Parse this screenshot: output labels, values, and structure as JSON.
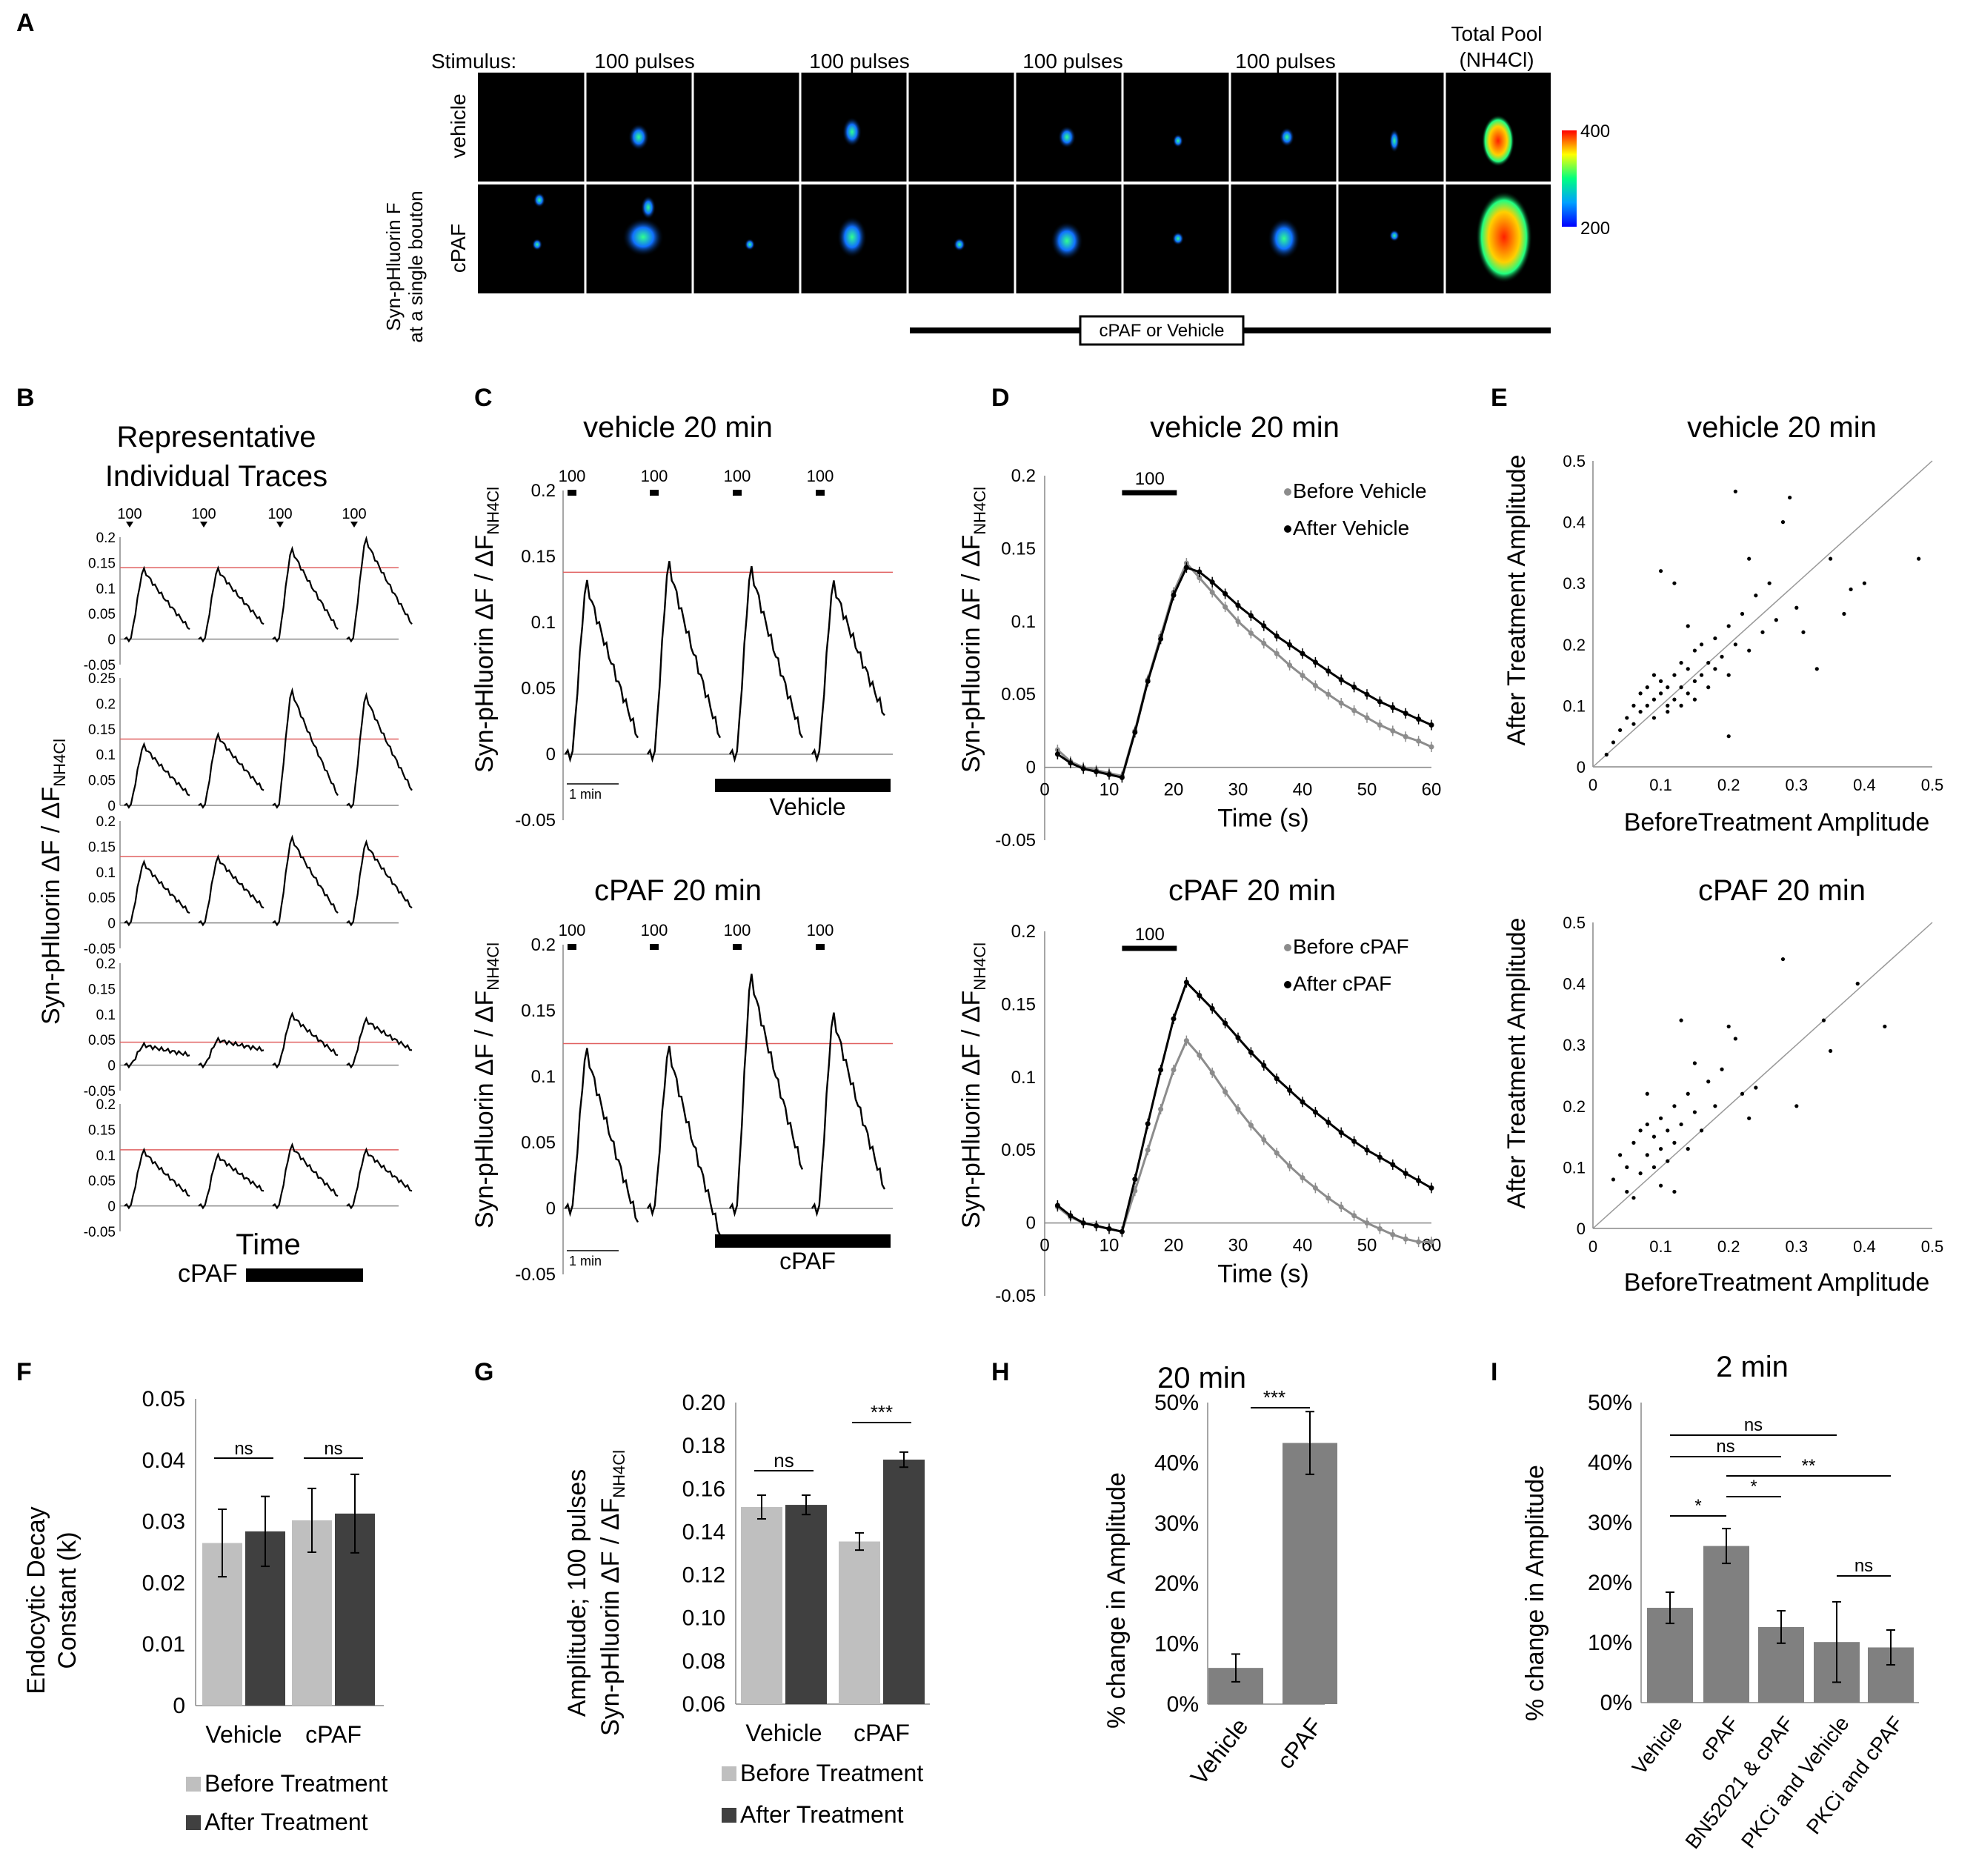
{
  "panel_labels": [
    "A",
    "B",
    "C",
    "D",
    "E",
    "F",
    "G",
    "H",
    "I"
  ],
  "panel_a": {
    "stimulus_label": "Stimulus:",
    "pulse_labels": [
      "100 pulses",
      "100 pulses",
      "100 pulses",
      "100 pulses"
    ],
    "total_pool_line1": "Total Pool",
    "total_pool_line2": "(NH4Cl)",
    "row_labels": [
      "vehicle",
      "cPAF"
    ],
    "side_title_line1": "Syn-pHluorin F",
    "side_title_line2": "at a single bouton",
    "colorbar_max": "400",
    "colorbar_min": "200",
    "treatment_box": "cPAF or Vehicle",
    "colors": {
      "cb_top": "#ff0000",
      "cb_mid": "#00ff80",
      "cb_bot": "#0000ff"
    }
  },
  "panel_b": {
    "title_line1": "Representative",
    "title_line2": "Individual Traces",
    "stim_label": "100",
    "ylabel": "Syn-pHluorin ΔF / ΔF",
    "ylabel_sub": "NH4Cl",
    "xlabel": "Time",
    "bar_label": "cPAF",
    "ticks": [
      [
        "0.2",
        "0.15",
        "0.1",
        "0.05",
        "0",
        "-0.05"
      ],
      [
        "0.25",
        "0.2",
        "0.15",
        "0.1",
        "0.05",
        "0"
      ],
      [
        "0.2",
        "0.15",
        "0.1",
        "0.05",
        "0",
        "-0.05"
      ],
      [
        "0.2",
        "0.15",
        "0.1",
        "0.05",
        "0",
        "-0.05"
      ],
      [
        "0.2",
        "0.15",
        "0.1",
        "0.05",
        "0",
        "-0.05"
      ]
    ]
  },
  "panel_c": {
    "stim_label": "100",
    "ylabel": "Syn-pHluorin ΔF / ΔF",
    "ylabel_sub": "NH4Cl",
    "scale_label": "1 min",
    "ticks": [
      "0.2",
      "0.15",
      "0.1",
      "0.05",
      "0",
      "-0.05"
    ],
    "top": {
      "title": "vehicle 20 min",
      "bar_label": "Vehicle"
    },
    "bottom": {
      "title": "cPAF 20 min",
      "bar_label": "cPAF"
    }
  },
  "panel_d": {
    "stim_label": "100",
    "ylabel": "Syn-pHluorin ΔF / ΔF",
    "ylabel_sub": "NH4Cl",
    "xlabel": "Time (s)",
    "yticks": [
      "0.2",
      "0.15",
      "0.1",
      "0.05",
      "0",
      "-0.05"
    ],
    "xticks": [
      "0",
      "10",
      "20",
      "30",
      "40",
      "50",
      "60"
    ],
    "top": {
      "title": "vehicle 20 min",
      "legend": [
        "Before Vehicle",
        "After Vehicle"
      ]
    },
    "bottom": {
      "title": "cPAF 20 min",
      "legend": [
        "Before cPAF",
        "After cPAF"
      ]
    },
    "colors": {
      "before": "#8c8c8c",
      "after": "#000000"
    }
  },
  "panel_e": {
    "xlabel": "BeforeTreatment Amplitude",
    "ylabel": "After Treatment Amplitude",
    "ticks": [
      "0",
      "0.1",
      "0.2",
      "0.3",
      "0.4",
      "0.5"
    ],
    "top": {
      "title": "vehicle 20 min"
    },
    "bottom": {
      "title": "cPAF 20 min"
    }
  },
  "panel_f": {
    "ylabel_line1": "Endocytic Decay",
    "ylabel_line2": "Constant (k)",
    "yticks": [
      "0.05",
      "0.04",
      "0.03",
      "0.02",
      "0.01",
      "0"
    ],
    "categories": [
      "Vehicle",
      "cPAF"
    ],
    "legend": [
      "Before Treatment",
      "After Treatment"
    ],
    "sig": [
      "ns",
      "ns"
    ]
  },
  "panel_g": {
    "ylabel_line1": "Amplitude; 100 pulses",
    "ylabel_line2": "Syn-pHluorin ΔF / ΔF",
    "ylabel_sub": "NH4Cl",
    "yticks": [
      "0.20",
      "0.18",
      "0.16",
      "0.14",
      "0.12",
      "0.10",
      "0.08",
      "0.06"
    ],
    "categories": [
      "Vehicle",
      "cPAF"
    ],
    "legend": [
      "Before Treatment",
      "After Treatment"
    ],
    "sig": [
      "ns",
      "***"
    ]
  },
  "panel_h": {
    "title": "20 min",
    "ylabel": "% change in Amplitude",
    "yticks": [
      "50%",
      "40%",
      "30%",
      "20%",
      "10%",
      "0%"
    ],
    "categories": [
      "Vehicle",
      "cPAF"
    ],
    "sig": "***"
  },
  "panel_i": {
    "title": "2 min",
    "ylabel": "% change in Amplitude",
    "yticks": [
      "50%",
      "40%",
      "30%",
      "20%",
      "10%",
      "0%"
    ],
    "categories": [
      "Vehicle",
      "cPAF",
      "BN52021 & cPAF",
      "PKCi and Vehicle",
      "PKCi and cPAF"
    ],
    "sig": [
      "ns",
      "ns",
      "**",
      "*",
      "*",
      "ns"
    ]
  },
  "chart_data": [
    {
      "type": "line",
      "panel": "B",
      "title": "Representative Individual Traces",
      "xlabel": "Time",
      "ylabel": "Syn-pHluorin ΔF / ΔF NH4Cl",
      "series": [
        {
          "name": "trace 1",
          "peaks": [
            0.14,
            0.14,
            0.18,
            0.2
          ],
          "baseline": 0.14
        },
        {
          "name": "trace 2",
          "peaks": [
            0.12,
            0.14,
            0.23,
            0.22
          ],
          "baseline": 0.13
        },
        {
          "name": "trace 3",
          "peaks": [
            0.12,
            0.13,
            0.17,
            0.16
          ],
          "baseline": 0.13
        },
        {
          "name": "trace 4",
          "peaks": [
            0.04,
            0.05,
            0.1,
            0.09
          ],
          "baseline": 0.045
        },
        {
          "name": "trace 5",
          "peaks": [
            0.11,
            0.1,
            0.12,
            0.11
          ],
          "baseline": 0.11
        }
      ]
    },
    {
      "type": "line",
      "panel": "C",
      "title": "vehicle 20 min",
      "ylabel": "Syn-pHluorin ΔF / ΔF NH4Cl",
      "ylim": [
        -0.05,
        0.2
      ],
      "peaks": [
        0.133,
        0.148,
        0.144,
        0.132
      ],
      "troughs": [
        0.013,
        0.013,
        0.013,
        0.03
      ],
      "baseline": 0.138
    },
    {
      "type": "line",
      "panel": "C",
      "title": "cPAF 20 min",
      "ylabel": "Syn-pHluorin ΔF / ΔF NH4Cl",
      "ylim": [
        -0.05,
        0.2
      ],
      "peaks": [
        0.123,
        0.125,
        0.18,
        0.15
      ],
      "troughs": [
        -0.01,
        -0.02,
        0.03,
        0.015
      ],
      "baseline": 0.125
    },
    {
      "type": "line",
      "panel": "D",
      "title": "vehicle 20 min",
      "xlabel": "Time (s)",
      "ylabel": "Syn-pHluorin ΔF / ΔF NH4Cl",
      "xlim": [
        0,
        60
      ],
      "ylim": [
        -0.05,
        0.2
      ],
      "x": [
        2,
        4,
        6,
        8,
        10,
        12,
        14,
        16,
        18,
        20,
        22,
        24,
        26,
        28,
        30,
        32,
        34,
        36,
        38,
        40,
        42,
        44,
        46,
        48,
        50,
        52,
        54,
        56,
        58,
        60
      ],
      "series": [
        {
          "name": "Before Vehicle",
          "values": [
            0.012,
            0.004,
            0,
            -0.002,
            -0.004,
            -0.006,
            0.025,
            0.06,
            0.09,
            0.12,
            0.14,
            0.13,
            0.12,
            0.11,
            0.1,
            0.092,
            0.085,
            0.078,
            0.07,
            0.063,
            0.056,
            0.05,
            0.044,
            0.039,
            0.034,
            0.029,
            0.025,
            0.021,
            0.018,
            0.014
          ]
        },
        {
          "name": "After Vehicle",
          "values": [
            0.009,
            0.003,
            -0.001,
            -0.003,
            -0.005,
            -0.007,
            0.024,
            0.059,
            0.088,
            0.118,
            0.137,
            0.134,
            0.127,
            0.119,
            0.111,
            0.104,
            0.097,
            0.09,
            0.084,
            0.078,
            0.072,
            0.066,
            0.06,
            0.055,
            0.05,
            0.045,
            0.041,
            0.037,
            0.033,
            0.029
          ]
        }
      ]
    },
    {
      "type": "line",
      "panel": "D",
      "title": "cPAF 20 min",
      "xlabel": "Time (s)",
      "ylabel": "Syn-pHluorin ΔF / ΔF NH4Cl",
      "xlim": [
        0,
        60
      ],
      "ylim": [
        -0.05,
        0.2
      ],
      "x": [
        2,
        4,
        6,
        8,
        10,
        12,
        14,
        16,
        18,
        20,
        22,
        24,
        26,
        28,
        30,
        32,
        34,
        36,
        38,
        40,
        42,
        44,
        46,
        48,
        50,
        52,
        54,
        56,
        58,
        60
      ],
      "series": [
        {
          "name": "Before cPAF",
          "values": [
            0.011,
            0.004,
            0,
            -0.002,
            -0.004,
            -0.006,
            0.022,
            0.05,
            0.078,
            0.105,
            0.125,
            0.115,
            0.103,
            0.09,
            0.078,
            0.067,
            0.057,
            0.048,
            0.039,
            0.031,
            0.024,
            0.017,
            0.011,
            0.005,
            0,
            -0.004,
            -0.008,
            -0.011,
            -0.013,
            -0.013
          ]
        },
        {
          "name": "After cPAF",
          "values": [
            0.012,
            0.005,
            0,
            -0.002,
            -0.004,
            -0.006,
            0.03,
            0.068,
            0.105,
            0.14,
            0.165,
            0.156,
            0.147,
            0.137,
            0.127,
            0.117,
            0.108,
            0.099,
            0.091,
            0.083,
            0.076,
            0.069,
            0.062,
            0.056,
            0.05,
            0.045,
            0.04,
            0.034,
            0.029,
            0.024
          ]
        }
      ]
    },
    {
      "type": "scatter",
      "panel": "E",
      "title": "vehicle 20 min",
      "xlabel": "BeforeTreatment Amplitude",
      "ylabel": "After Treatment Amplitude",
      "xlim": [
        0,
        0.5
      ],
      "ylim": [
        0,
        0.5
      ],
      "identity_line": true,
      "points": [
        [
          0.02,
          0.02
        ],
        [
          0.03,
          0.04
        ],
        [
          0.04,
          0.06
        ],
        [
          0.05,
          0.08
        ],
        [
          0.06,
          0.07
        ],
        [
          0.06,
          0.1
        ],
        [
          0.07,
          0.09
        ],
        [
          0.07,
          0.12
        ],
        [
          0.08,
          0.1
        ],
        [
          0.08,
          0.13
        ],
        [
          0.09,
          0.08
        ],
        [
          0.09,
          0.11
        ],
        [
          0.1,
          0.12
        ],
        [
          0.1,
          0.14
        ],
        [
          0.11,
          0.1
        ],
        [
          0.11,
          0.13
        ],
        [
          0.12,
          0.15
        ],
        [
          0.12,
          0.11
        ],
        [
          0.13,
          0.13
        ],
        [
          0.13,
          0.17
        ],
        [
          0.14,
          0.12
        ],
        [
          0.14,
          0.16
        ],
        [
          0.15,
          0.14
        ],
        [
          0.15,
          0.19
        ],
        [
          0.16,
          0.15
        ],
        [
          0.16,
          0.2
        ],
        [
          0.17,
          0.17
        ],
        [
          0.17,
          0.13
        ],
        [
          0.18,
          0.21
        ],
        [
          0.18,
          0.16
        ],
        [
          0.19,
          0.18
        ],
        [
          0.2,
          0.23
        ],
        [
          0.2,
          0.15
        ],
        [
          0.21,
          0.2
        ],
        [
          0.21,
          0.45
        ],
        [
          0.22,
          0.25
        ],
        [
          0.23,
          0.19
        ],
        [
          0.24,
          0.28
        ],
        [
          0.25,
          0.22
        ],
        [
          0.26,
          0.3
        ],
        [
          0.27,
          0.24
        ],
        [
          0.28,
          0.4
        ],
        [
          0.29,
          0.44
        ],
        [
          0.3,
          0.26
        ],
        [
          0.31,
          0.22
        ],
        [
          0.33,
          0.16
        ],
        [
          0.35,
          0.34
        ],
        [
          0.37,
          0.25
        ],
        [
          0.38,
          0.29
        ],
        [
          0.4,
          0.3
        ],
        [
          0.48,
          0.34
        ],
        [
          0.1,
          0.32
        ],
        [
          0.12,
          0.3
        ],
        [
          0.14,
          0.23
        ],
        [
          0.2,
          0.05
        ],
        [
          0.23,
          0.34
        ],
        [
          0.09,
          0.15
        ],
        [
          0.11,
          0.09
        ],
        [
          0.13,
          0.1
        ],
        [
          0.15,
          0.11
        ]
      ]
    },
    {
      "type": "scatter",
      "panel": "E",
      "title": "cPAF 20 min",
      "xlabel": "BeforeTreatment Amplitude",
      "ylabel": "After Treatment Amplitude",
      "xlim": [
        0,
        0.5
      ],
      "ylim": [
        0,
        0.5
      ],
      "identity_line": true,
      "points": [
        [
          0.03,
          0.08
        ],
        [
          0.04,
          0.12
        ],
        [
          0.05,
          0.06
        ],
        [
          0.05,
          0.1
        ],
        [
          0.06,
          0.14
        ],
        [
          0.07,
          0.09
        ],
        [
          0.07,
          0.16
        ],
        [
          0.08,
          0.12
        ],
        [
          0.08,
          0.22
        ],
        [
          0.09,
          0.1
        ],
        [
          0.09,
          0.15
        ],
        [
          0.1,
          0.13
        ],
        [
          0.1,
          0.18
        ],
        [
          0.11,
          0.11
        ],
        [
          0.11,
          0.16
        ],
        [
          0.12,
          0.2
        ],
        [
          0.12,
          0.14
        ],
        [
          0.13,
          0.34
        ],
        [
          0.13,
          0.17
        ],
        [
          0.14,
          0.13
        ],
        [
          0.14,
          0.22
        ],
        [
          0.15,
          0.19
        ],
        [
          0.15,
          0.27
        ],
        [
          0.16,
          0.16
        ],
        [
          0.17,
          0.24
        ],
        [
          0.18,
          0.2
        ],
        [
          0.19,
          0.26
        ],
        [
          0.2,
          0.33
        ],
        [
          0.21,
          0.31
        ],
        [
          0.22,
          0.22
        ],
        [
          0.23,
          0.18
        ],
        [
          0.24,
          0.23
        ],
        [
          0.28,
          0.44
        ],
        [
          0.3,
          0.2
        ],
        [
          0.34,
          0.34
        ],
        [
          0.35,
          0.29
        ],
        [
          0.39,
          0.4
        ],
        [
          0.43,
          0.33
        ],
        [
          0.06,
          0.05
        ],
        [
          0.1,
          0.07
        ],
        [
          0.12,
          0.06
        ],
        [
          0.08,
          0.17
        ]
      ]
    },
    {
      "type": "bar",
      "panel": "F",
      "ylabel": "Endocytic Decay Constant (k)",
      "categories": [
        "Vehicle",
        "cPAF"
      ],
      "ylim": [
        0,
        0.05
      ],
      "series": [
        {
          "name": "Before Treatment",
          "values": [
            0.0265,
            0.0302
          ],
          "errors": [
            0.0055,
            0.0052
          ]
        },
        {
          "name": "After Treatment",
          "values": [
            0.0284,
            0.0313
          ],
          "errors": [
            0.0057,
            0.0064
          ]
        }
      ],
      "annotations": [
        "ns",
        "ns"
      ]
    },
    {
      "type": "bar",
      "panel": "G",
      "ylabel": "Amplitude; 100 pulses Syn-pHluorin ΔF / ΔF NH4Cl",
      "categories": [
        "Vehicle",
        "cPAF"
      ],
      "ylim": [
        0.06,
        0.2
      ],
      "series": [
        {
          "name": "Before Treatment",
          "values": [
            0.1515,
            0.1355
          ],
          "errors": [
            0.0055,
            0.004
          ]
        },
        {
          "name": "After Treatment",
          "values": [
            0.1525,
            0.1735
          ],
          "errors": [
            0.0045,
            0.0035
          ]
        }
      ],
      "annotations": [
        "ns",
        "***"
      ]
    },
    {
      "type": "bar",
      "panel": "H",
      "title": "20 min",
      "ylabel": "% change in Amplitude",
      "categories": [
        "Vehicle",
        "cPAF"
      ],
      "ylim": [
        0,
        50
      ],
      "values": [
        6,
        43.3
      ],
      "errors": [
        2.3,
        5.2
      ],
      "annotations": [
        "***"
      ]
    },
    {
      "type": "bar",
      "panel": "I",
      "title": "2 min",
      "ylabel": "% change in Amplitude",
      "categories": [
        "Vehicle",
        "cPAF",
        "BN52021 & cPAF",
        "PKCi and Vehicle",
        "PKCi and cPAF"
      ],
      "ylim": [
        0,
        50
      ],
      "values": [
        15.8,
        26.1,
        12.6,
        10.1,
        9.2
      ],
      "errors": [
        2.6,
        2.9,
        2.7,
        6.7,
        2.9
      ],
      "annotations": [
        "ns",
        "ns",
        "**",
        "*",
        "*",
        "ns"
      ]
    }
  ]
}
